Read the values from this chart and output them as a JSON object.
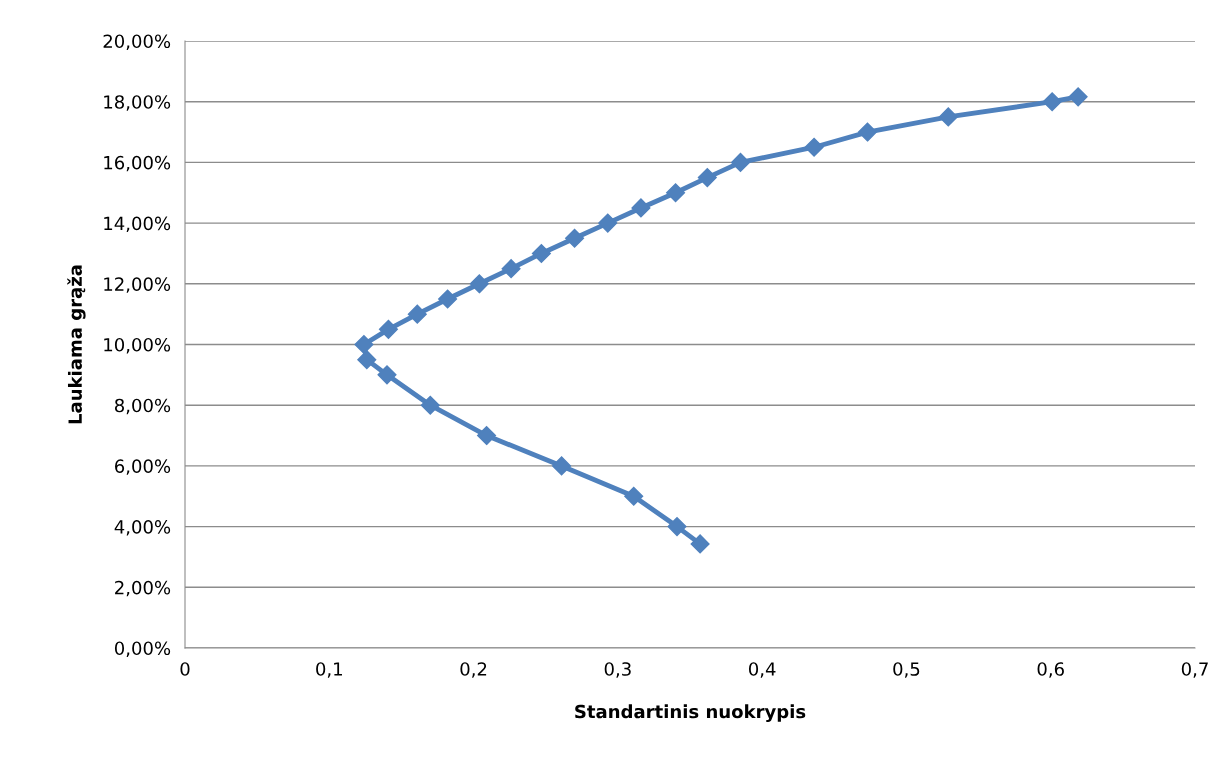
{
  "chart_data": {
    "type": "line",
    "xlabel": "Standartinis nuokrypis",
    "ylabel": "Laukiama grąža",
    "series": [
      {
        "color": "#4f81bd",
        "x": [
          0.357,
          0.341,
          0.311,
          0.261,
          0.209,
          0.17,
          0.14,
          0.126,
          0.124,
          0.141,
          0.161,
          0.182,
          0.204,
          0.226,
          0.247,
          0.27,
          0.293,
          0.316,
          0.34,
          0.362,
          0.385,
          0.436,
          0.473,
          0.529,
          0.601,
          0.619
        ],
        "values": [
          3.43,
          4.0,
          5.0,
          6.0,
          7.0,
          8.0,
          9.0,
          9.5,
          10.0,
          10.5,
          11.0,
          11.5,
          12.0,
          12.5,
          13.0,
          13.5,
          14.0,
          14.5,
          15.0,
          15.5,
          16.0,
          16.5,
          17.0,
          17.5,
          18.0,
          18.16
        ]
      }
    ],
    "marker": "diamond",
    "line_style": "solid",
    "grid": "y",
    "xlim": [
      0,
      0.7
    ],
    "xticks": [
      0,
      {
        "value": 0.1,
        "label": "0,1"
      },
      {
        "value": 0.2,
        "label": "0,2"
      },
      {
        "value": 0.3,
        "label": "0,3"
      },
      {
        "value": 0.4,
        "label": "0,4"
      },
      {
        "value": 0.5,
        "label": "0,5"
      },
      {
        "value": 0.6,
        "label": "0,6"
      },
      {
        "value": 0.7,
        "label": "0,7"
      }
    ],
    "ylim": [
      0,
      20
    ],
    "yticks": [
      {
        "value": 0,
        "label": "0,00%"
      },
      {
        "value": 2,
        "label": "2,00%"
      },
      {
        "value": 4,
        "label": "4,00%"
      },
      {
        "value": 6,
        "label": "6,00%"
      },
      {
        "value": 8,
        "label": "8,00%"
      },
      {
        "value": 10,
        "label": "10,00%"
      },
      {
        "value": 12,
        "label": "12,00%"
      },
      {
        "value": 14,
        "label": "14,00%"
      },
      {
        "value": 16,
        "label": "16,00%"
      },
      {
        "value": 18,
        "label": "18,00%"
      },
      {
        "value": 20,
        "label": "20,00%"
      }
    ]
  }
}
